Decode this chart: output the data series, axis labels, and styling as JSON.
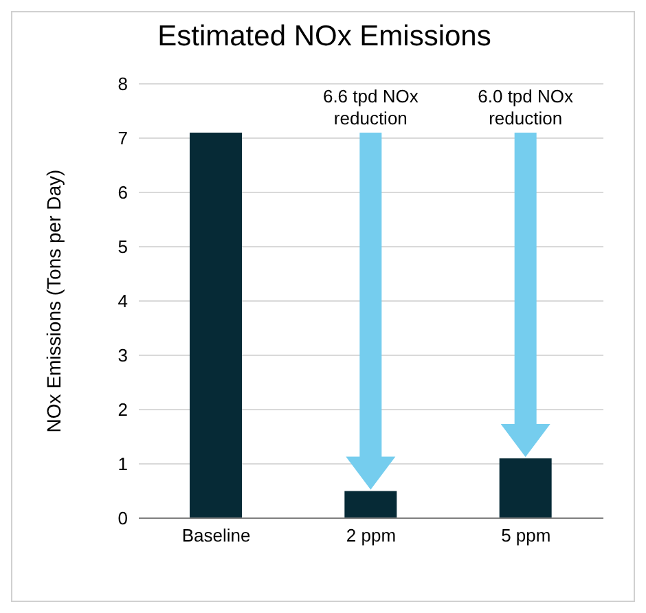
{
  "chart_data": {
    "type": "bar",
    "title": "Estimated NOx Emissions",
    "ylabel": "NOx Emissions (Tons per Day)",
    "categories": [
      "Baseline",
      "2 ppm",
      "5 ppm"
    ],
    "values": [
      7.1,
      0.5,
      1.1
    ],
    "color": "#062a36",
    "ylim": [
      0,
      8
    ],
    "yticks": [
      0,
      1,
      2,
      3,
      4,
      5,
      6,
      7,
      8
    ],
    "grid": "y",
    "annotations": [
      "6.6 tpd NOx reduction",
      "6.0 tpd NOx reduction"
    ]
  }
}
